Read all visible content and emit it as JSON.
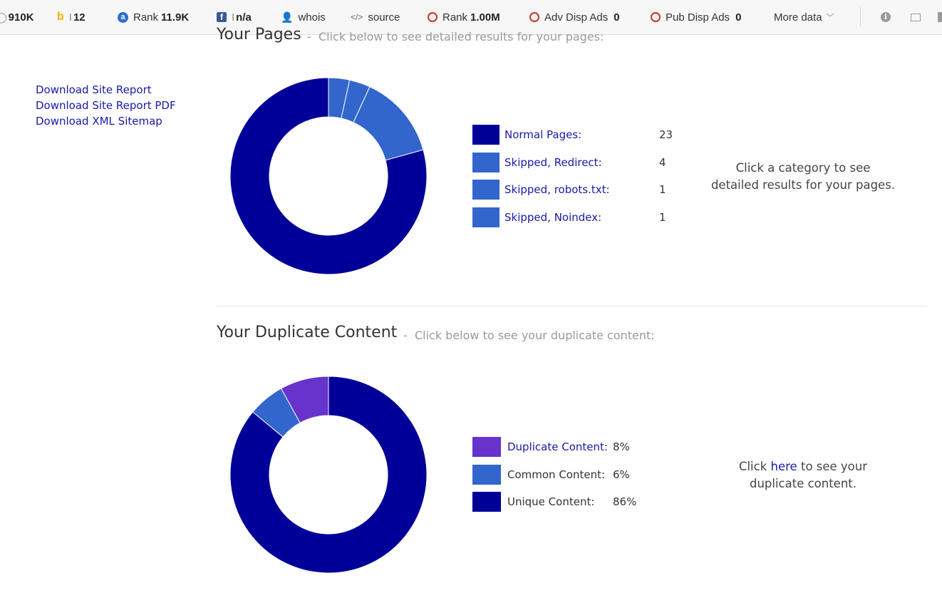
{
  "toolbar": {
    "item1_value": "910K",
    "bing_value": "12",
    "alexa_rank_label": "Rank",
    "alexa_rank_value": "11.9K",
    "facebook_value": "n/a",
    "whois_label": "whois",
    "source_label": "source",
    "rank2_label": "Rank",
    "rank2_value": "1.00M",
    "adv_disp_ads_label": "Adv Disp Ads",
    "adv_disp_ads_value": "0",
    "pub_disp_ads_label": "Pub Disp Ads",
    "pub_disp_ads_value": "0",
    "more_data_label": "More data"
  },
  "sidebar": {
    "links": [
      "Download Site Report",
      "Download Site Report PDF",
      "Download XML Sitemap"
    ]
  },
  "your_pages": {
    "title": "Your Pages",
    "subtitle": "Click below to see detailed results for your pages:",
    "legend": [
      {
        "label": "Normal Pages:",
        "value": "23",
        "color": "#000099"
      },
      {
        "label": "Skipped, Redirect:",
        "value": "4",
        "color": "#3366cc"
      },
      {
        "label": "Skipped, robots.txt:",
        "value": "1",
        "color": "#3366cc"
      },
      {
        "label": "Skipped, Noindex:",
        "value": "1",
        "color": "#3366cc"
      }
    ],
    "note_line1": "Click a category to see",
    "note_line2": "detailed results for your pages."
  },
  "duplicate_content": {
    "title": "Your Duplicate Content",
    "subtitle": "Click below to see your duplicate content:",
    "legend": [
      {
        "label": "Duplicate Content:",
        "value": "8%",
        "color": "#6633cc"
      },
      {
        "label": "Common Content:",
        "value": "6%",
        "color": "#3366cc"
      },
      {
        "label": "Unique Content:",
        "value": "86%",
        "color": "#000099"
      }
    ],
    "note_prefix": "Click",
    "note_link": "here",
    "note_suffix": "to see your",
    "note_line2": "duplicate content."
  },
  "chart_data": [
    {
      "type": "pie",
      "categories": [
        "Normal Pages",
        "Skipped, Redirect",
        "Skipped, robots.txt",
        "Skipped, Noindex"
      ],
      "values": [
        23,
        4,
        1,
        1
      ],
      "colors": [
        "#000099",
        "#3366cc",
        "#3366cc",
        "#3366cc"
      ]
    },
    {
      "type": "pie",
      "categories": [
        "Duplicate Content",
        "Common Content",
        "Unique Content"
      ],
      "values": [
        8,
        6,
        86
      ],
      "colors": [
        "#6633cc",
        "#3366cc",
        "#000099"
      ]
    }
  ]
}
